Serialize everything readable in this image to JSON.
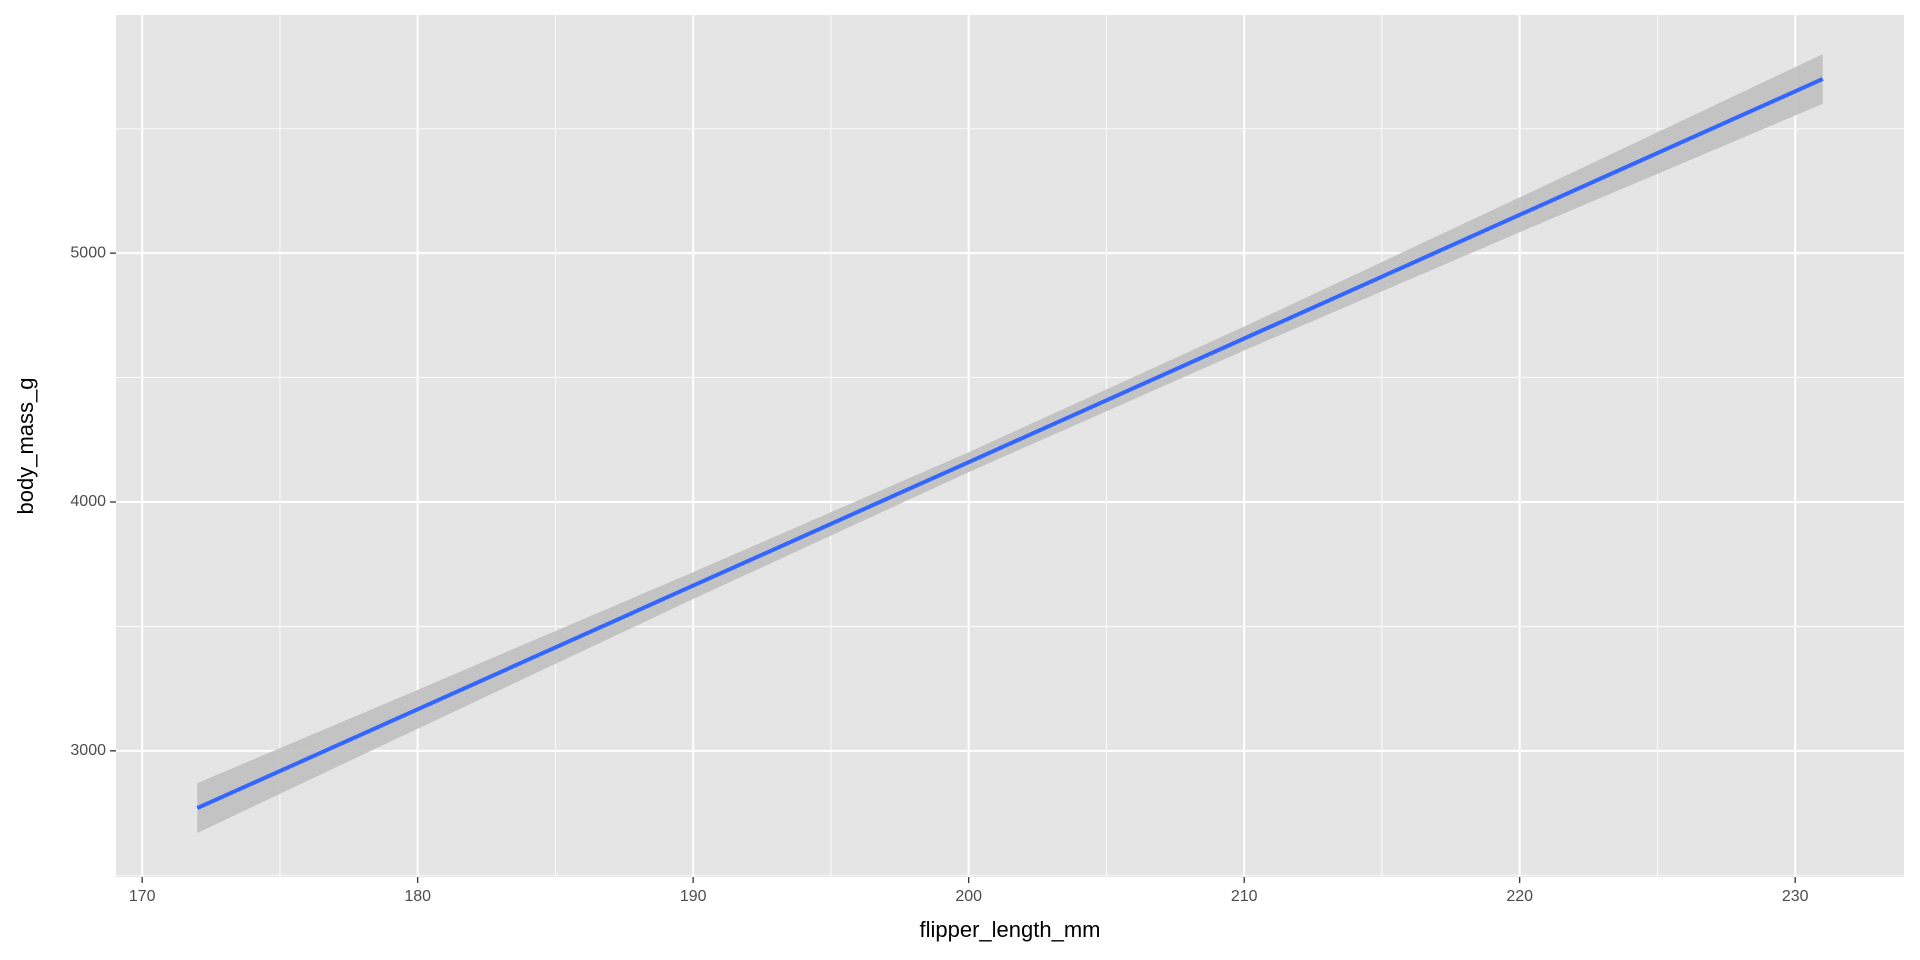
{
  "chart_data": {
    "type": "smooth",
    "x_label": "flipper_length_mm",
    "y_label": "body_mass_g",
    "x": [
      172,
      180,
      190,
      200,
      210,
      220,
      231
    ],
    "values": [
      2770,
      3167,
      3664,
      4160,
      4657,
      5154,
      5700
    ],
    "lower": [
      2670,
      3089,
      3610,
      4120,
      4609,
      5084,
      5600
    ],
    "upper": [
      2870,
      3245,
      3718,
      4200,
      4705,
      5224,
      5800
    ],
    "line_color": "#3366ff",
    "band_color": "#bdbdbd",
    "panel_color": "#e5e5e5",
    "xlim": [
      169.05,
      233.95
    ],
    "xticks": [
      170,
      180,
      190,
      200,
      210,
      220,
      230
    ],
    "x_minor_ticks": [
      175,
      185,
      195,
      205,
      215,
      225
    ],
    "ylim": [
      2493,
      5957
    ],
    "yticks": [
      3000,
      4000,
      5000
    ],
    "y_minor_ticks": [
      2500,
      3500,
      4500,
      5500
    ],
    "grid": true
  }
}
